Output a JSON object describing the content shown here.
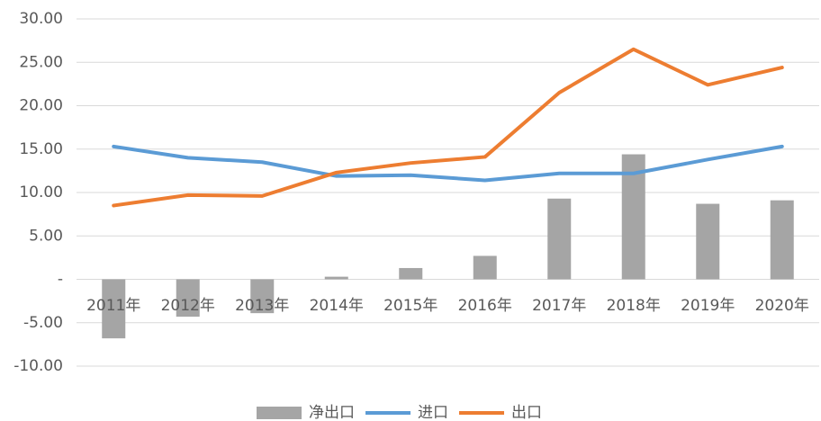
{
  "chart_data": {
    "type": "bar",
    "categories": [
      "2011年",
      "2012年",
      "2013年",
      "2014年",
      "2015年",
      "2016年",
      "2017年",
      "2018年",
      "2019年",
      "2020年"
    ],
    "series": [
      {
        "name": "净出口",
        "type": "bar",
        "color": "#a5a5a5",
        "values": [
          -6.8,
          -4.3,
          -3.9,
          0.3,
          1.3,
          2.7,
          9.3,
          14.4,
          8.7,
          9.1
        ]
      },
      {
        "name": "进口",
        "type": "line",
        "color": "#5b9bd5",
        "values": [
          15.3,
          14.0,
          13.5,
          11.9,
          12.0,
          11.4,
          12.2,
          12.2,
          13.8,
          15.3
        ]
      },
      {
        "name": "出口",
        "type": "line",
        "color": "#ed7d31",
        "values": [
          8.5,
          9.7,
          9.6,
          12.3,
          13.4,
          14.1,
          21.5,
          26.5,
          22.4,
          24.4
        ]
      }
    ],
    "ylim": [
      -10,
      30
    ],
    "yticks": [
      {
        "value": -10,
        "label": "-10.00"
      },
      {
        "value": -5,
        "label": "-5.00"
      },
      {
        "value": 0,
        "label": "-"
      },
      {
        "value": 5,
        "label": "5.00"
      },
      {
        "value": 10,
        "label": "10.00"
      },
      {
        "value": 15,
        "label": "15.00"
      },
      {
        "value": 20,
        "label": "20.00"
      },
      {
        "value": 25,
        "label": "25.00"
      },
      {
        "value": 30,
        "label": "30.00"
      }
    ],
    "grid": true,
    "legend": "bottom"
  }
}
